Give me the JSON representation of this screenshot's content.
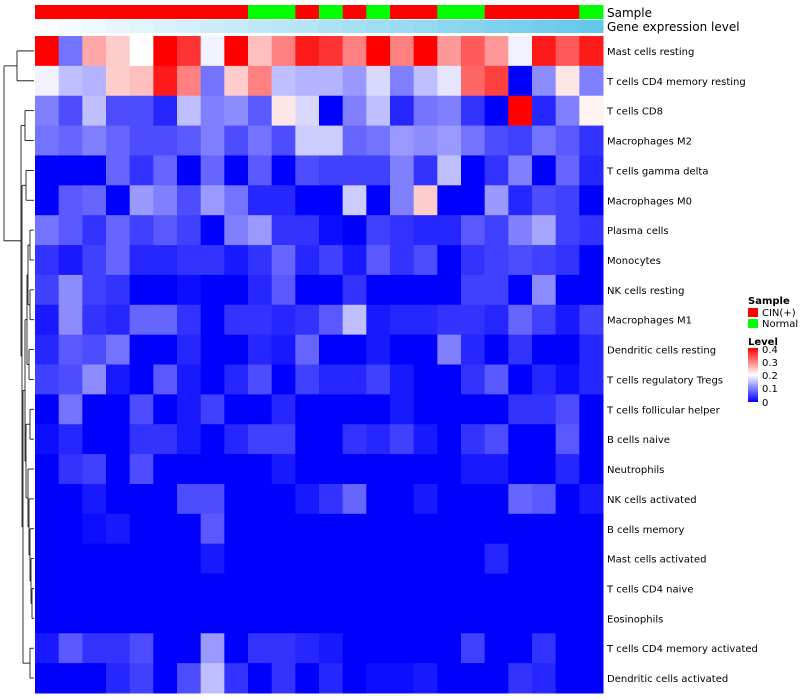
{
  "chart_data": {
    "type": "heatmap",
    "title": "",
    "column_annotations": [
      {
        "name": "Sample",
        "label": "Sample"
      },
      {
        "name": "Gene expression level",
        "label": "Gene expression level"
      }
    ],
    "sample_groups": [
      "CIN(+)",
      "CIN(+)",
      "CIN(+)",
      "CIN(+)",
      "CIN(+)",
      "CIN(+)",
      "CIN(+)",
      "CIN(+)",
      "CIN(+)",
      "Normal",
      "Normal",
      "CIN(+)",
      "Normal",
      "CIN(+)",
      "Normal",
      "CIN(+)",
      "CIN(+)",
      "Normal",
      "Normal",
      "CIN(+)",
      "CIN(+)",
      "CIN(+)",
      "CIN(+)",
      "Normal"
    ],
    "gene_expression_level": [
      0.03,
      0.07,
      0.11,
      0.15,
      0.19,
      0.23,
      0.27,
      0.31,
      0.35,
      0.39,
      0.43,
      0.46,
      0.5,
      0.54,
      0.58,
      0.62,
      0.66,
      0.7,
      0.74,
      0.78,
      0.82,
      0.86,
      0.9,
      0.94
    ],
    "rows": [
      "Mast cells resting",
      "T cells CD4 memory resting",
      "T cells CD8",
      "Macrophages M2",
      "T cells gamma delta",
      "Macrophages M0",
      "Plasma cells",
      "Monocytes",
      "NK cells resting",
      "Macrophages M1",
      "Dendritic cells resting",
      "T cells regulatory  Tregs",
      "T cells follicular helper",
      "B cells naive",
      "Neutrophils",
      "NK cells activated",
      "B cells memory",
      "Mast cells activated",
      "T cells CD4 naive",
      "Eosinophils",
      "T cells CD4 memory activated",
      "Dendritic cells activated"
    ],
    "values": [
      [
        0.4,
        0.09,
        0.27,
        0.24,
        0.2,
        0.4,
        0.36,
        0.19,
        0.4,
        0.25,
        0.3,
        0.38,
        0.36,
        0.3,
        0.4,
        0.3,
        0.4,
        0.28,
        0.33,
        0.28,
        0.19,
        0.38,
        0.33,
        0.38
      ],
      [
        0.19,
        0.15,
        0.14,
        0.24,
        0.25,
        0.38,
        0.3,
        0.09,
        0.24,
        0.3,
        0.15,
        0.14,
        0.14,
        0.12,
        0.17,
        0.1,
        0.15,
        0.18,
        0.32,
        0.35,
        0.0,
        0.11,
        0.22,
        0.1
      ],
      [
        0.1,
        0.06,
        0.15,
        0.06,
        0.06,
        0.03,
        0.15,
        0.1,
        0.11,
        0.07,
        0.22,
        0.17,
        0.0,
        0.1,
        0.15,
        0.03,
        0.09,
        0.1,
        0.04,
        0.0,
        0.4,
        0.03,
        0.1,
        0.21
      ],
      [
        0.09,
        0.08,
        0.1,
        0.08,
        0.06,
        0.06,
        0.07,
        0.1,
        0.06,
        0.09,
        0.06,
        0.16,
        0.16,
        0.08,
        0.09,
        0.12,
        0.11,
        0.12,
        0.09,
        0.06,
        0.05,
        0.09,
        0.07,
        0.04
      ],
      [
        0.0,
        0.0,
        0.0,
        0.08,
        0.04,
        0.08,
        0.0,
        0.08,
        0.0,
        0.07,
        0.0,
        0.06,
        0.05,
        0.05,
        0.05,
        0.1,
        0.04,
        0.15,
        0.0,
        0.04,
        0.1,
        0.0,
        0.08,
        0.03
      ],
      [
        0.0,
        0.07,
        0.08,
        0.0,
        0.12,
        0.1,
        0.06,
        0.12,
        0.09,
        0.03,
        0.03,
        0.0,
        0.0,
        0.16,
        0.0,
        0.1,
        0.24,
        0.0,
        0.0,
        0.12,
        0.03,
        0.06,
        0.05,
        0.0
      ],
      [
        0.09,
        0.07,
        0.04,
        0.08,
        0.05,
        0.07,
        0.05,
        0.0,
        0.1,
        0.12,
        0.04,
        0.04,
        0.01,
        0.0,
        0.05,
        0.04,
        0.03,
        0.03,
        0.07,
        0.05,
        0.1,
        0.13,
        0.05,
        0.04
      ],
      [
        0.04,
        0.02,
        0.05,
        0.08,
        0.03,
        0.03,
        0.04,
        0.04,
        0.02,
        0.04,
        0.08,
        0.03,
        0.05,
        0.02,
        0.07,
        0.04,
        0.06,
        0.0,
        0.04,
        0.05,
        0.06,
        0.05,
        0.04,
        0.0
      ],
      [
        0.05,
        0.11,
        0.05,
        0.04,
        0.0,
        0.0,
        0.01,
        0.0,
        0.0,
        0.03,
        0.07,
        0.0,
        0.0,
        0.04,
        0.0,
        0.0,
        0.0,
        0.0,
        0.05,
        0.05,
        0.0,
        0.11,
        0.0,
        0.0
      ],
      [
        0.02,
        0.11,
        0.04,
        0.03,
        0.08,
        0.08,
        0.04,
        0.0,
        0.04,
        0.04,
        0.03,
        0.04,
        0.07,
        0.15,
        0.02,
        0.03,
        0.03,
        0.04,
        0.04,
        0.03,
        0.08,
        0.05,
        0.02,
        0.05
      ],
      [
        0.03,
        0.07,
        0.06,
        0.09,
        0.0,
        0.0,
        0.03,
        0.0,
        0.0,
        0.03,
        0.02,
        0.08,
        0.0,
        0.0,
        0.02,
        0.0,
        0.0,
        0.1,
        0.03,
        0.0,
        0.04,
        0.0,
        0.0,
        0.03
      ],
      [
        0.05,
        0.06,
        0.11,
        0.02,
        0.0,
        0.07,
        0.02,
        0.0,
        0.03,
        0.06,
        0.0,
        0.05,
        0.03,
        0.03,
        0.05,
        0.02,
        0.0,
        0.0,
        0.04,
        0.07,
        0.0,
        0.03,
        0.01,
        0.03
      ],
      [
        0.0,
        0.09,
        0.0,
        0.0,
        0.06,
        0.0,
        0.02,
        0.05,
        0.0,
        0.0,
        0.03,
        0.0,
        0.0,
        0.0,
        0.0,
        0.02,
        0.0,
        0.0,
        0.0,
        0.0,
        0.04,
        0.04,
        0.06,
        0.0
      ],
      [
        0.01,
        0.03,
        0.0,
        0.0,
        0.04,
        0.04,
        0.02,
        0.0,
        0.03,
        0.05,
        0.05,
        0.0,
        0.0,
        0.04,
        0.03,
        0.05,
        0.02,
        0.0,
        0.04,
        0.06,
        0.0,
        0.0,
        0.07,
        0.0
      ],
      [
        0.0,
        0.04,
        0.05,
        0.0,
        0.06,
        0.0,
        0.0,
        0.0,
        0.0,
        0.0,
        0.02,
        0.0,
        0.0,
        0.0,
        0.0,
        0.0,
        0.0,
        0.0,
        0.02,
        0.02,
        0.0,
        0.0,
        0.03,
        0.0
      ],
      [
        0.0,
        0.0,
        0.02,
        0.0,
        0.0,
        0.0,
        0.06,
        0.06,
        0.0,
        0.0,
        0.0,
        0.02,
        0.04,
        0.08,
        0.0,
        0.0,
        0.02,
        0.0,
        0.0,
        0.0,
        0.08,
        0.07,
        0.0,
        0.02
      ],
      [
        0.0,
        0.0,
        0.01,
        0.02,
        0.0,
        0.0,
        0.0,
        0.07,
        0.0,
        0.0,
        0.0,
        0.0,
        0.0,
        0.0,
        0.0,
        0.0,
        0.0,
        0.0,
        0.0,
        0.0,
        0.0,
        0.0,
        0.0,
        0.0
      ],
      [
        0.0,
        0.0,
        0.0,
        0.0,
        0.0,
        0.0,
        0.0,
        0.02,
        0.0,
        0.0,
        0.0,
        0.0,
        0.0,
        0.0,
        0.0,
        0.0,
        0.0,
        0.0,
        0.0,
        0.03,
        0.0,
        0.0,
        0.0,
        0.0
      ],
      [
        0.0,
        0.0,
        0.0,
        0.0,
        0.0,
        0.0,
        0.0,
        0.0,
        0.0,
        0.0,
        0.0,
        0.0,
        0.0,
        0.0,
        0.0,
        0.0,
        0.0,
        0.0,
        0.0,
        0.0,
        0.0,
        0.0,
        0.0,
        0.0
      ],
      [
        0.0,
        0.0,
        0.0,
        0.0,
        0.0,
        0.0,
        0.0,
        0.0,
        0.0,
        0.0,
        0.0,
        0.0,
        0.0,
        0.0,
        0.0,
        0.0,
        0.0,
        0.0,
        0.0,
        0.0,
        0.0,
        0.0,
        0.0,
        0.0
      ],
      [
        0.02,
        0.07,
        0.04,
        0.04,
        0.06,
        0.0,
        0.0,
        0.12,
        0.0,
        0.04,
        0.04,
        0.03,
        0.02,
        0.0,
        0.0,
        0.0,
        0.0,
        0.0,
        0.05,
        0.0,
        0.0,
        0.04,
        0.0,
        0.0
      ],
      [
        0.0,
        0.0,
        0.0,
        0.03,
        0.05,
        0.0,
        0.06,
        0.15,
        0.04,
        0.0,
        0.04,
        0.0,
        0.03,
        0.0,
        0.01,
        0.01,
        0.02,
        0.0,
        0.0,
        0.0,
        0.04,
        0.03,
        0.0,
        0.0
      ]
    ],
    "color_scale": {
      "low": "#0000ff",
      "mid": "#ffffff",
      "high": "#ff0000",
      "min": 0,
      "mid_value": 0.2,
      "max": 0.4
    },
    "annotation_colors": {
      "Sample": {
        "CIN(+)": "#ff0000",
        "Normal": "#00ff00"
      },
      "gene_low": "#ffffff",
      "gene_high": "#5bc5ea"
    },
    "legend": {
      "sample_title": "Sample",
      "sample_entries": [
        "CIN(+)",
        "Normal"
      ],
      "level_title": "Level",
      "level_ticks": [
        "0.4",
        "0.3",
        "0.2",
        "0.1",
        "0"
      ],
      "position": "right"
    },
    "row_dendrogram": true,
    "column_dendrogram": false
  }
}
